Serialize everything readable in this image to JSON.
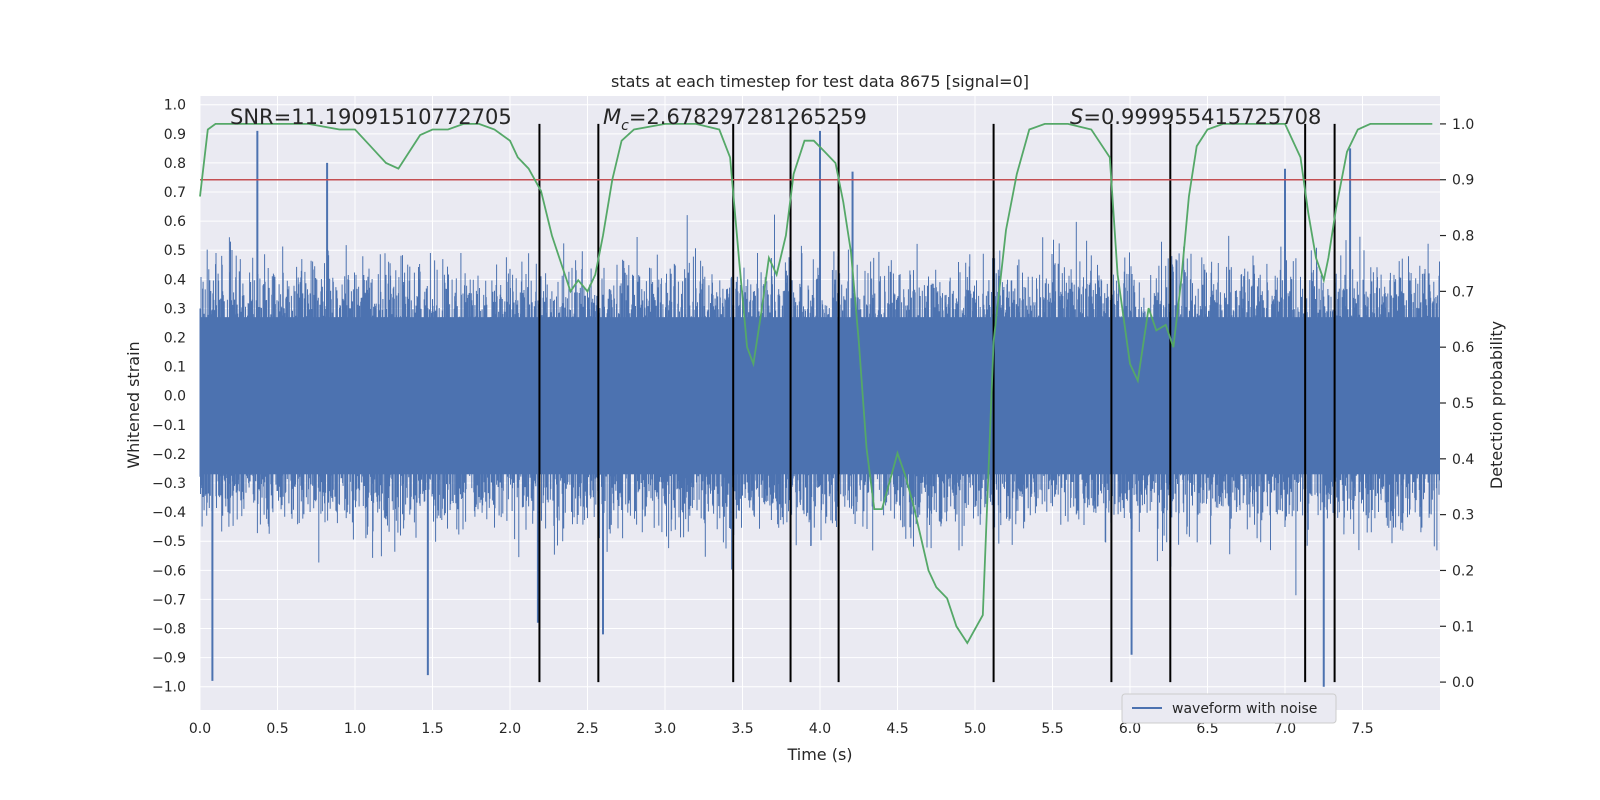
{
  "chart_data": {
    "type": "line",
    "title": "stats at each timestep for test data 8675 [signal=0]",
    "xlabel": "Time (s)",
    "ylabel_left": "Whitened strain",
    "ylabel_right": "Detection probability",
    "xlim": [
      0.0,
      8.0
    ],
    "ylim_left": [
      -1.08,
      1.03
    ],
    "ylim_right": [
      -0.05,
      1.05
    ],
    "x_ticks": [
      "0.0",
      "0.5",
      "1.0",
      "1.5",
      "2.0",
      "2.5",
      "3.0",
      "3.5",
      "4.0",
      "4.5",
      "5.0",
      "5.5",
      "6.0",
      "6.5",
      "7.0",
      "7.5"
    ],
    "y_left_ticks": [
      "1.0",
      "0.9",
      "0.8",
      "0.7",
      "0.6",
      "0.5",
      "0.4",
      "0.3",
      "0.2",
      "0.1",
      "0.0",
      "−0.1",
      "−0.2",
      "−0.3",
      "−0.4",
      "−0.5",
      "−0.6",
      "−0.7",
      "−0.8",
      "−0.9",
      "−1.0"
    ],
    "y_right_ticks": [
      "1.0",
      "0.9",
      "0.8",
      "0.7",
      "0.6",
      "0.5",
      "0.4",
      "0.3",
      "0.2",
      "0.1",
      "0.0"
    ],
    "grid": true,
    "legend_position": "bottom-right",
    "annotations": {
      "snr": "SNR=11.19091510772705",
      "mc_symbol": "M",
      "mc_sub": "c",
      "mc_value": "=2.678297281265259",
      "s_symbol": "S",
      "s_value": "=0.999955415725708"
    },
    "series": [
      {
        "name": "waveform with noise",
        "axis": "left",
        "color": "#4c72b0",
        "style": "dense noise band",
        "approx_band": [
          -0.42,
          0.42
        ],
        "notable_spikes": [
          {
            "x": 0.08,
            "y": -0.98
          },
          {
            "x": 0.37,
            "y": 0.91
          },
          {
            "x": 0.82,
            "y": 0.8
          },
          {
            "x": 1.47,
            "y": -0.96
          },
          {
            "x": 2.18,
            "y": -0.78
          },
          {
            "x": 2.6,
            "y": -0.82
          },
          {
            "x": 4.0,
            "y": 0.91
          },
          {
            "x": 4.21,
            "y": 0.77
          },
          {
            "x": 6.01,
            "y": -0.89
          },
          {
            "x": 7.0,
            "y": 0.78
          },
          {
            "x": 7.25,
            "y": -1.0
          },
          {
            "x": 7.42,
            "y": 0.85
          }
        ]
      },
      {
        "name": "",
        "axis": "right",
        "color": "#55a868",
        "x": [
          0.0,
          0.05,
          0.1,
          0.2,
          0.35,
          0.5,
          0.7,
          0.9,
          1.0,
          1.1,
          1.2,
          1.28,
          1.35,
          1.42,
          1.5,
          1.6,
          1.7,
          1.8,
          1.9,
          2.0,
          2.05,
          2.12,
          2.2,
          2.27,
          2.33,
          2.39,
          2.44,
          2.5,
          2.55,
          2.6,
          2.66,
          2.72,
          2.8,
          3.0,
          3.2,
          3.35,
          3.42,
          3.48,
          3.53,
          3.57,
          3.62,
          3.67,
          3.72,
          3.78,
          3.83,
          3.9,
          3.96,
          4.03,
          4.1,
          4.15,
          4.2,
          4.25,
          4.3,
          4.35,
          4.4,
          4.45,
          4.5,
          4.55,
          4.6,
          4.65,
          4.7,
          4.75,
          4.82,
          4.88,
          4.95,
          5.05,
          5.12,
          5.2,
          5.27,
          5.35,
          5.45,
          5.6,
          5.75,
          5.87,
          5.92,
          6.0,
          6.05,
          6.12,
          6.17,
          6.23,
          6.28,
          6.33,
          6.38,
          6.43,
          6.5,
          6.6,
          6.8,
          7.0,
          7.1,
          7.15,
          7.2,
          7.25,
          7.28,
          7.33,
          7.4,
          7.47,
          7.55,
          7.65,
          7.8,
          7.95
        ],
        "y": [
          0.87,
          0.99,
          1.0,
          1.0,
          1.0,
          1.0,
          1.0,
          0.99,
          0.99,
          0.96,
          0.93,
          0.92,
          0.95,
          0.98,
          0.99,
          0.99,
          1.0,
          1.0,
          0.99,
          0.97,
          0.94,
          0.92,
          0.88,
          0.8,
          0.75,
          0.7,
          0.72,
          0.7,
          0.73,
          0.8,
          0.9,
          0.97,
          0.99,
          1.0,
          1.0,
          0.99,
          0.94,
          0.75,
          0.6,
          0.57,
          0.66,
          0.76,
          0.73,
          0.8,
          0.91,
          0.97,
          0.97,
          0.95,
          0.93,
          0.86,
          0.77,
          0.61,
          0.42,
          0.31,
          0.31,
          0.36,
          0.41,
          0.37,
          0.32,
          0.26,
          0.2,
          0.17,
          0.15,
          0.1,
          0.07,
          0.12,
          0.61,
          0.81,
          0.91,
          0.99,
          1.0,
          1.0,
          0.99,
          0.94,
          0.73,
          0.57,
          0.54,
          0.67,
          0.63,
          0.64,
          0.6,
          0.72,
          0.87,
          0.96,
          0.99,
          1.0,
          1.0,
          1.0,
          0.94,
          0.84,
          0.76,
          0.72,
          0.76,
          0.85,
          0.95,
          0.99,
          1.0,
          1.0,
          1.0,
          1.0
        ]
      },
      {
        "name": "",
        "axis": "right",
        "color": "#c44e52",
        "type": "hline",
        "y": 0.9
      }
    ],
    "vertical_markers_x": [
      2.19,
      2.57,
      3.44,
      3.81,
      4.12,
      5.12,
      5.88,
      6.26,
      7.13,
      7.32
    ]
  }
}
